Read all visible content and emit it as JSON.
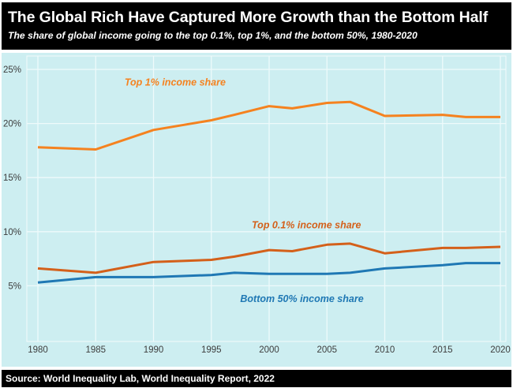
{
  "header": {
    "title": "The Global Rich Have Captured More Growth than the Bottom Half",
    "subtitle": "The share of global income going to the top 0.1%, top 1%, and the bottom 50%, 1980-2020"
  },
  "footer": {
    "source": "Source: World Inequality Lab, World Inequality Report, 2022"
  },
  "colors": {
    "header_bg": "#000000",
    "plot_bg": "#cdeef1",
    "top1": "#f5821f",
    "top01": "#d4601a",
    "bottom50": "#1f78b4"
  },
  "chart_data": {
    "type": "line",
    "title": "The Global Rich Have Captured More Growth than the Bottom Half",
    "subtitle": "The share of global income going to the top 0.1%, top 1%, and the bottom 50%, 1980-2020",
    "xlabel": "",
    "ylabel": "",
    "xlim": [
      1980,
      2020
    ],
    "ylim": [
      0,
      26
    ],
    "x_ticks": [
      1980,
      1985,
      1990,
      1995,
      2000,
      2005,
      2010,
      2015,
      2020
    ],
    "x_tick_labels": [
      "1980",
      "1985",
      "1990",
      "1995",
      "2000",
      "2005",
      "2010",
      "2015",
      "2020"
    ],
    "y_ticks": [
      5,
      10,
      15,
      20,
      25
    ],
    "y_tick_labels": [
      "5%",
      "10%",
      "15%",
      "20%",
      "25%"
    ],
    "grid": true,
    "legend": "inline labels",
    "series": [
      {
        "name": "Top 1% income share",
        "color": "#f5821f",
        "label_x": 1987.5,
        "label_y": 23.5,
        "points": [
          [
            1980,
            17.8
          ],
          [
            1985,
            17.6
          ],
          [
            1990,
            19.4
          ],
          [
            1995,
            20.3
          ],
          [
            1997,
            20.8
          ],
          [
            2000,
            21.6
          ],
          [
            2002,
            21.4
          ],
          [
            2005,
            21.9
          ],
          [
            2007,
            22.0
          ],
          [
            2010,
            20.7
          ],
          [
            2015,
            20.8
          ],
          [
            2017,
            20.6
          ],
          [
            2020,
            20.6
          ]
        ]
      },
      {
        "name": "Top 0.1% income share",
        "color": "#d4601a",
        "label_x": 1998.5,
        "label_y": 10.3,
        "points": [
          [
            1980,
            6.6
          ],
          [
            1985,
            6.2
          ],
          [
            1990,
            7.2
          ],
          [
            1995,
            7.4
          ],
          [
            1997,
            7.7
          ],
          [
            2000,
            8.3
          ],
          [
            2002,
            8.2
          ],
          [
            2005,
            8.8
          ],
          [
            2007,
            8.9
          ],
          [
            2010,
            8.0
          ],
          [
            2015,
            8.5
          ],
          [
            2017,
            8.5
          ],
          [
            2020,
            8.6
          ]
        ]
      },
      {
        "name": "Bottom 50% income share",
        "color": "#1f78b4",
        "label_x": 1997.5,
        "label_y": 3.5,
        "points": [
          [
            1980,
            5.3
          ],
          [
            1985,
            5.8
          ],
          [
            1990,
            5.8
          ],
          [
            1995,
            6.0
          ],
          [
            1997,
            6.2
          ],
          [
            2000,
            6.1
          ],
          [
            2005,
            6.1
          ],
          [
            2007,
            6.2
          ],
          [
            2010,
            6.6
          ],
          [
            2015,
            6.9
          ],
          [
            2017,
            7.1
          ],
          [
            2020,
            7.1
          ]
        ]
      }
    ],
    "source": "Source: World Inequality Lab, World Inequality Report, 2022"
  }
}
